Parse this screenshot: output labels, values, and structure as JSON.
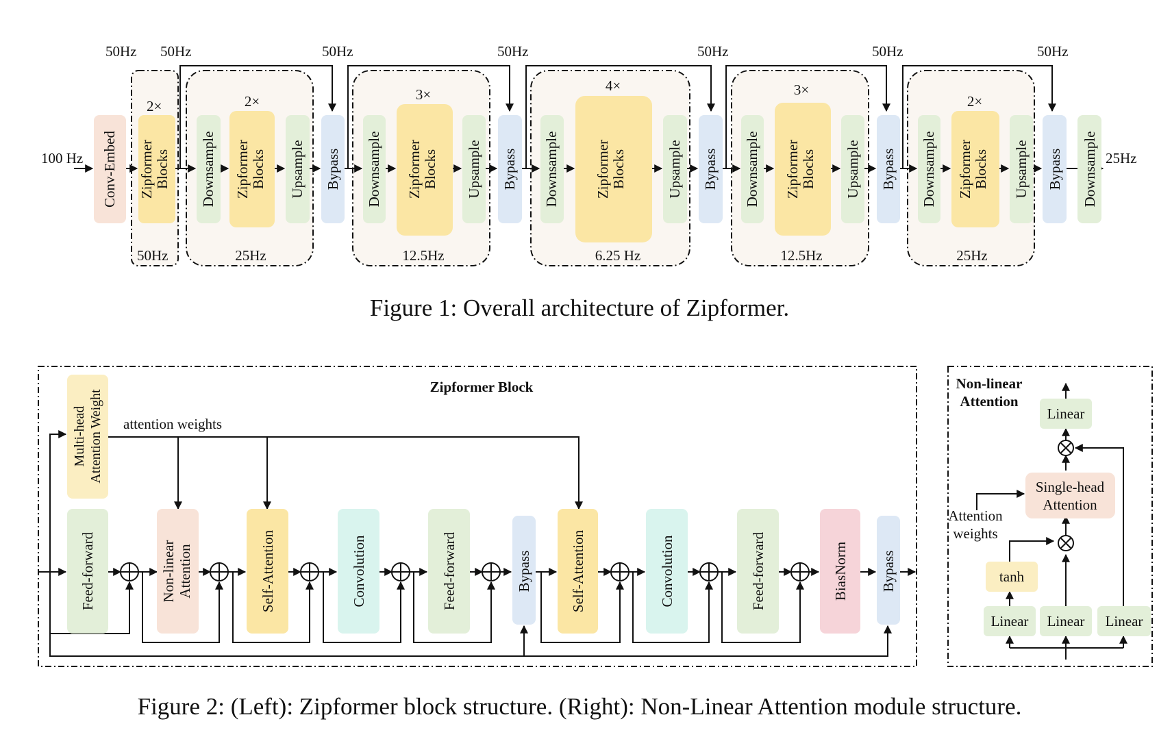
{
  "figure1": {
    "caption": "Figure 1: Overall architecture of Zipformer.",
    "input_rate": "100 Hz",
    "output_rate": "25Hz",
    "conv_embed": "Conv-Embed",
    "first_stack": {
      "repeat": "2×",
      "label": "Zipformer Blocks",
      "top_rate_a": "50Hz",
      "top_rate_b": "50Hz",
      "bottom_rate": "50Hz"
    },
    "stacks": [
      {
        "repeat": "2×",
        "rate": "25Hz",
        "skip_rate": "50Hz"
      },
      {
        "repeat": "3×",
        "rate": "12.5Hz",
        "skip_rate": "50Hz"
      },
      {
        "repeat": "4×",
        "rate": "6.25 Hz",
        "skip_rate": "50Hz"
      },
      {
        "repeat": "3×",
        "rate": "12.5Hz",
        "skip_rate": "50Hz"
      },
      {
        "repeat": "2×",
        "rate": "25Hz",
        "skip_rate": "50Hz"
      }
    ],
    "labels": {
      "downsample": "Downsample",
      "upsample": "Upsample",
      "bypass": "Bypass",
      "zipformer_blocks": "Zipformer Blocks"
    }
  },
  "figure2": {
    "caption": "Figure 2: (Left): Zipformer block structure. (Right): Non-Linear Attention module structure.",
    "left": {
      "title": "Zipformer Block",
      "mhaw": "Multi-head Attention Weight",
      "attention_weights": "attention weights",
      "modules": [
        "Feed-forward",
        "Non-linear Attention",
        "Self-Attention",
        "Convolution",
        "Feed-forward",
        "Bypass",
        "Self-Attention",
        "Convolution",
        "Feed-forward",
        "BiasNorm",
        "Bypass"
      ]
    },
    "right": {
      "title_line1": "Non-linear",
      "title_line2": "Attention",
      "linear": "Linear",
      "single_head_1": "Single-head",
      "single_head_2": "Attention",
      "attn_weights_1": "Attention",
      "attn_weights_2": "weights",
      "tanh": "tanh"
    }
  },
  "colors": {
    "conv_embed": "#f8e3d8",
    "zipformer": "#fbe6a4",
    "downsample": "#e3efd9",
    "bypass": "#dde8f5",
    "stack_bg": "#faf6f1",
    "nla": "#f8e3d8",
    "conv": "#d9f4ee",
    "biasnorm": "#f6d4d9",
    "tanh": "#fbeec2"
  }
}
